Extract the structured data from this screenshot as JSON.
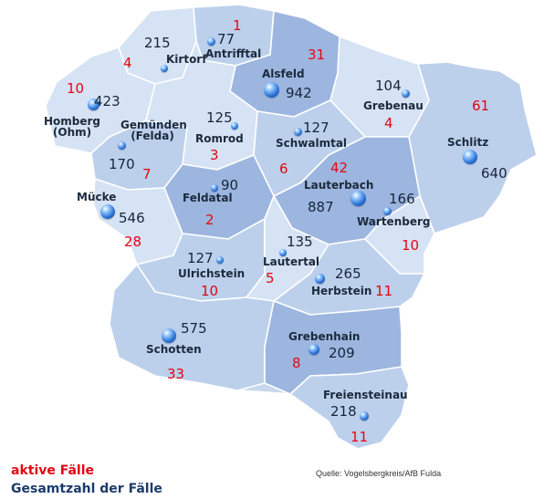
{
  "legend": {
    "active_label": "aktive Fälle",
    "total_label": "Gesamtzahl der Fälle"
  },
  "source": "Quelle: Vogelsbergkreis/AfB Fulda",
  "colors": {
    "region_light": "#d6e3f4",
    "region_mid": "#bcd0ec",
    "region_dark": "#9db6df",
    "active_text": "#e30613",
    "total_text": "#16253a"
  },
  "municipalities": [
    {
      "name": "Antrifftal",
      "total": "77",
      "active": "1"
    },
    {
      "name": "Kirtorf",
      "total": "215",
      "active": "4"
    },
    {
      "name": "Alsfeld",
      "total": "942",
      "active": "31"
    },
    {
      "name": "Grebenau",
      "total": "104",
      "active": "4"
    },
    {
      "name": "Homberg (Ohm)",
      "total": "423",
      "active": "10"
    },
    {
      "name": "Gemünden (Felda)",
      "total": "170",
      "active": "7"
    },
    {
      "name": "Romrod",
      "total": "125",
      "active": "3"
    },
    {
      "name": "Schwalmtal",
      "total": "127",
      "active": "6"
    },
    {
      "name": "Schlitz",
      "total": "640",
      "active": "61"
    },
    {
      "name": "Lauterbach",
      "total": "887",
      "active": "42"
    },
    {
      "name": "Wartenberg",
      "total": "166",
      "active": "10"
    },
    {
      "name": "Feldatal",
      "total": "90",
      "active": "2"
    },
    {
      "name": "Mücke",
      "total": "546",
      "active": "28"
    },
    {
      "name": "Ulrichstein",
      "total": "127",
      "active": "10"
    },
    {
      "name": "Lautertal",
      "total": "135",
      "active": "5"
    },
    {
      "name": "Herbstein",
      "total": "265",
      "active": "11"
    },
    {
      "name": "Schotten",
      "total": "575",
      "active": "33"
    },
    {
      "name": "Grebenhain",
      "total": "209",
      "active": "8"
    },
    {
      "name": "Freiensteinau",
      "total": "218",
      "active": "11"
    }
  ]
}
